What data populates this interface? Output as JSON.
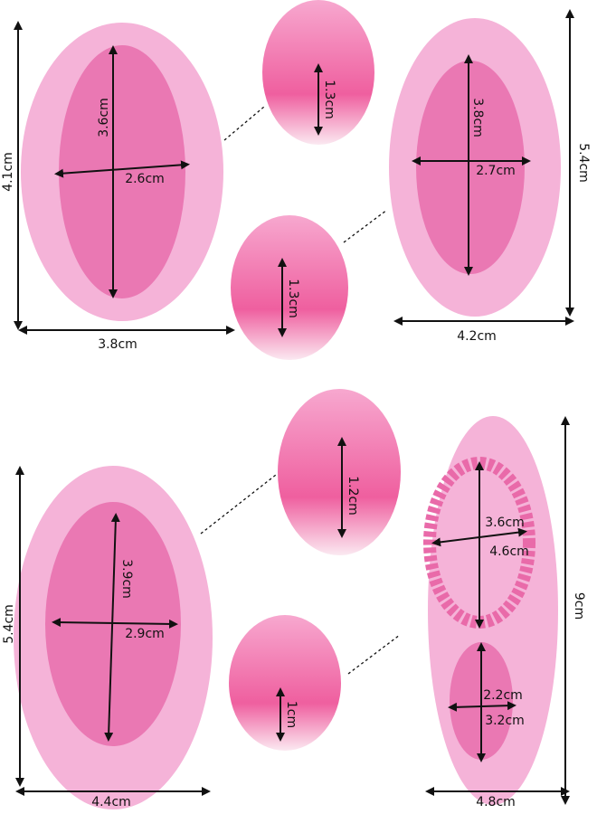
{
  "molds": [
    {
      "height": "4.1cm",
      "width": "3.8cm",
      "cavity_height": "3.6cm",
      "cavity_width": "2.6cm",
      "depth": "1.3cm"
    },
    {
      "height": "5.4cm",
      "width": "4.2cm",
      "cavity_height": "3.8cm",
      "cavity_width": "2.7cm",
      "depth": "1.3cm"
    },
    {
      "height": "5.4cm",
      "width": "4.4cm",
      "cavity_height": "3.9cm",
      "cavity_width": "2.9cm",
      "depth": "1.2cm"
    },
    {
      "height": "9cm",
      "width": "4.8cm",
      "frame_width": "3.6cm",
      "frame_height": "4.6cm",
      "small_width": "2.2cm",
      "small_height": "3.2cm",
      "depth": "1cm"
    }
  ]
}
